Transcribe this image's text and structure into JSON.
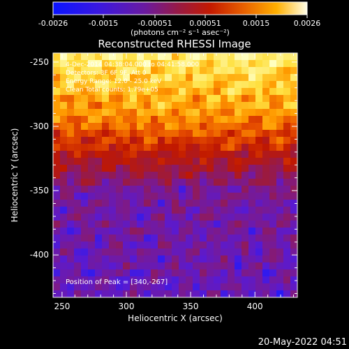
{
  "chart_data": {
    "type": "heatmap",
    "title": "Reconstructed RHESSI Image",
    "xlabel": "Heliocentric X (arcsec)",
    "ylabel": "Heliocentric Y (arcsec)",
    "xlim": [
      243,
      433
    ],
    "ylim": [
      -433,
      -243
    ],
    "x_ticks": [
      250,
      300,
      350,
      400
    ],
    "y_ticks": [
      -250,
      -300,
      -350,
      -400
    ],
    "colorbar": {
      "range": [
        -0.0026,
        0.0026
      ],
      "ticks": [
        "-0.0026",
        "-0.0015",
        "-0.00051",
        "0.00051",
        "0.0015",
        "0.0026"
      ],
      "units_label": "(photons cm⁻² s⁻¹ asec⁻²)"
    },
    "colors": {
      "background": "#000000",
      "text": "#ffffff",
      "colormap": [
        "#1a1aff",
        "#5a1ad0",
        "#7a1a90",
        "#9b1a40",
        "#c01800",
        "#e85000",
        "#ff9a00",
        "#ffe040",
        "#ffffc0"
      ]
    },
    "annotations": {
      "line1": "4-Dec-2014 04:38:04.000 to 04:41:58.000",
      "line2": "Detectors: 3F 6F 9F, Att 0",
      "line3": "Energy Range: 12.0 - 25.0 keV",
      "line4": "Clean     Total counts: 1.79e+05",
      "peak": "Position of Peak = [340,-267]"
    },
    "description_levels": {
      "top_band": "bright yellow-white emission near top",
      "middle_band": "red-orange mottled",
      "bottom_band": "blue-purple background"
    }
  },
  "timestamp": "20-May-2022 04:51"
}
